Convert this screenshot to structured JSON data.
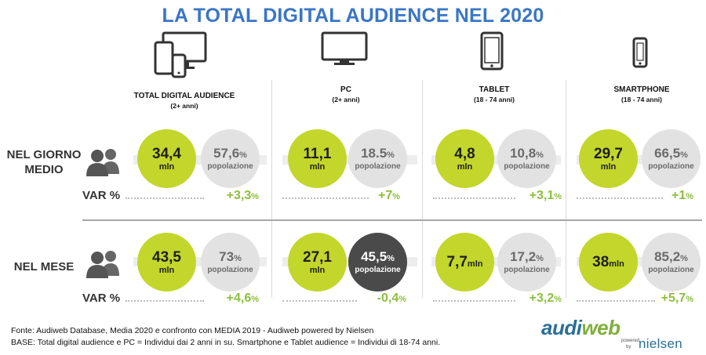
{
  "title": "LA TOTAL DIGITAL AUDIENCE NEL 2020",
  "columns": [
    {
      "name": "TOTAL DIGITAL AUDIENCE",
      "sub": "(2+ anni)",
      "icon": "multi-device-icon"
    },
    {
      "name": "PC",
      "sub": "(2+ anni)",
      "icon": "monitor-icon"
    },
    {
      "name": "TABLET",
      "sub": "(18 - 74 anni)",
      "icon": "tablet-icon"
    },
    {
      "name": "SMARTPHONE",
      "sub": "(18 - 74 anni)",
      "icon": "smartphone-icon"
    }
  ],
  "rows": [
    {
      "label": "NEL GIORNO MEDIO",
      "label_line1": "NEL GIORNO",
      "label_line2": "MEDIO",
      "var_label": "VAR %"
    },
    {
      "label": "NEL MESE",
      "label_line1": "NEL MESE",
      "var_label": "VAR %"
    }
  ],
  "unit": "mln",
  "pop_label": "popolazione",
  "percent_sign": "%",
  "cells": {
    "giorno": [
      {
        "value": "34,4",
        "pct": "57,6",
        "var": "+3,3"
      },
      {
        "value": "11,1",
        "pct": "18.5",
        "var": "+7"
      },
      {
        "value": "4,8",
        "pct": "10,8",
        "var": "+3,1"
      },
      {
        "value": "29,7",
        "pct": "66,5",
        "var": "+1"
      }
    ],
    "mese": [
      {
        "value": "43,5",
        "pct": "73",
        "var": "+4,6"
      },
      {
        "value": "27,1",
        "pct": "45,5",
        "var": "-0,4"
      },
      {
        "value": "7,7",
        "pct": "17,2",
        "var": "+3,2"
      },
      {
        "value": "38",
        "pct": "85,2",
        "var": "+5,7"
      }
    ]
  },
  "footer": {
    "line1": "Fonte: Audiweb Database, Media 2020 e confronto con MEDIA 2019 - Audiweb powered by Nielsen",
    "line2": "BASE: Total digital audience e PC = Individui dai 2 anni in su. Smartphone e Tablet audience = Individui di 18-74 anni."
  },
  "logo": {
    "brand_a": "audi",
    "brand_b": "web",
    "powered": "powered",
    "by": "by",
    "partner": "nielsen"
  },
  "colors": {
    "title": "#3a76c4",
    "green": "#c3d62b",
    "grey": "#e2e2e2",
    "dark": "#4a4a4a",
    "var": "#8dbf3c",
    "logo_blue": "#2a6f97",
    "logo_green": "#7fb03a"
  },
  "chart_data": {
    "type": "table",
    "title": "LA TOTAL DIGITAL AUDIENCE NEL 2020",
    "categories": [
      "TOTAL DIGITAL AUDIENCE",
      "PC",
      "TABLET",
      "SMARTPHONE"
    ],
    "series": [
      {
        "name": "NEL GIORNO MEDIO",
        "values_mln": [
          34.4,
          11.1,
          4.8,
          29.7
        ],
        "popolazione_pct": [
          57.6,
          18.5,
          10.8,
          66.5
        ],
        "var_pct": [
          3.3,
          7,
          3.1,
          1
        ]
      },
      {
        "name": "NEL MESE",
        "values_mln": [
          43.5,
          27.1,
          7.7,
          38
        ],
        "popolazione_pct": [
          73,
          45.5,
          17.2,
          85.2
        ],
        "var_pct": [
          4.6,
          -0.4,
          3.2,
          5.7
        ]
      }
    ]
  }
}
